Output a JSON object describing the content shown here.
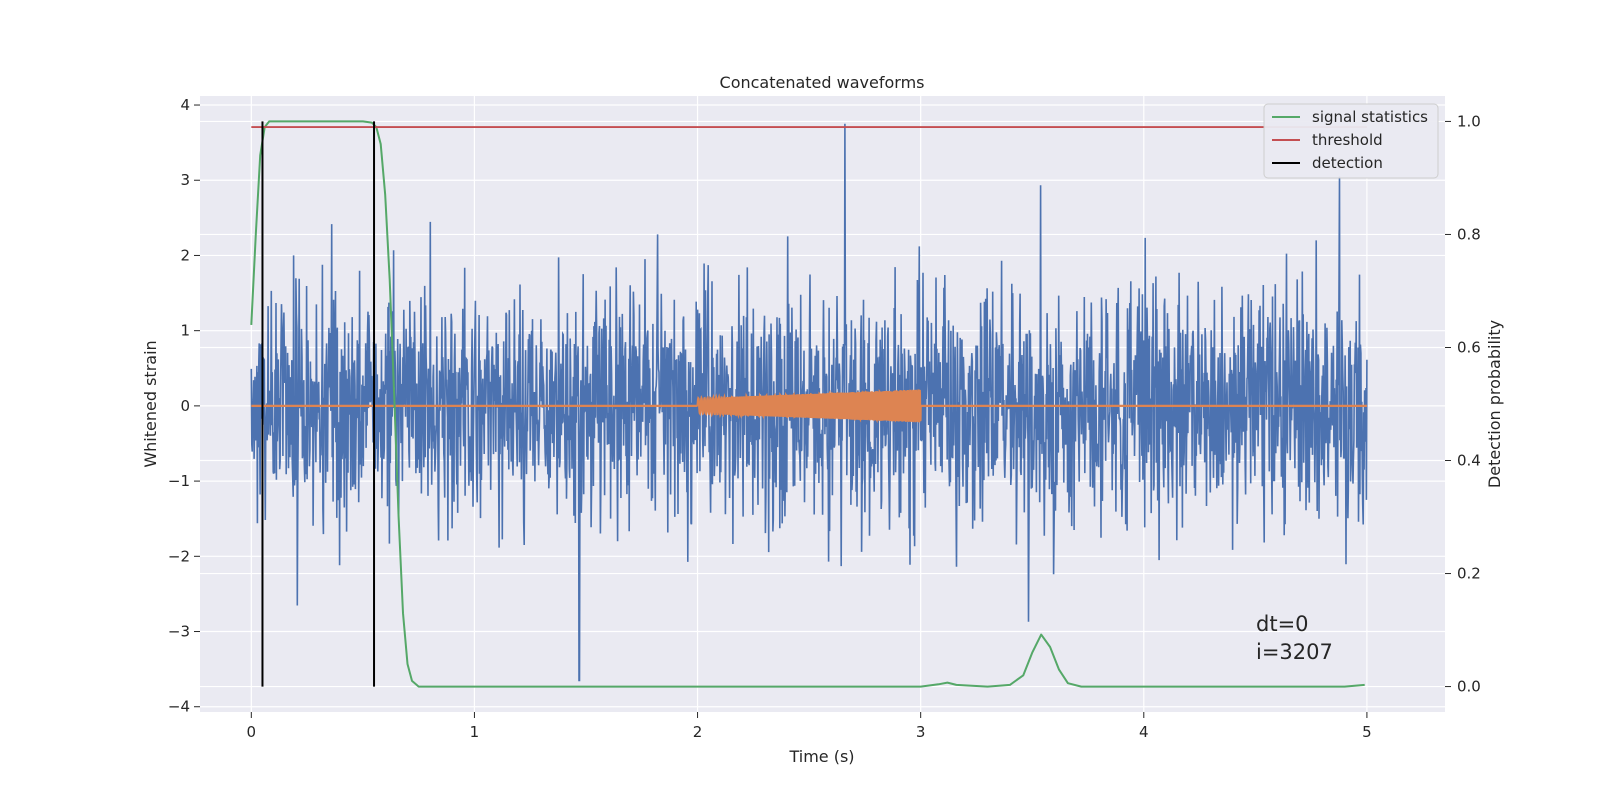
{
  "chart_data": {
    "type": "line",
    "title": "Concatenated waveforms",
    "xlabel": "Time (s)",
    "ylabel_left": "Whitened strain",
    "ylabel_right": "Detection probability",
    "xlim": [
      -0.23,
      5.35
    ],
    "ylim_left": [
      -4.07,
      4.12
    ],
    "ylim_right": [
      -0.045,
      1.045
    ],
    "x_ticks": [
      0,
      1,
      2,
      3,
      4,
      5
    ],
    "y_ticks_left": [
      -4,
      -3,
      -2,
      -1,
      0,
      1,
      2,
      3,
      4
    ],
    "y_ticks_right": [
      0.0,
      0.2,
      0.4,
      0.6,
      0.8,
      1.0
    ],
    "grid": true,
    "legend_position": "top-right",
    "legend": [
      {
        "label": "signal statistics",
        "color": "#55a868"
      },
      {
        "label": "threshold",
        "color": "#c44e52"
      },
      {
        "label": "detection",
        "color": "#000000"
      }
    ],
    "series": [
      {
        "name": "whitened strain",
        "axis": "left",
        "color": "#4c72b0",
        "x_range": [
          0,
          5
        ],
        "typical_amplitude": 0.8,
        "peak_max": 3.75,
        "peak_min": -3.65,
        "peak_max_at": 2.66,
        "peak_min_at": 1.47
      },
      {
        "name": "injected signal",
        "axis": "left",
        "color": "#dd8452",
        "x_range": [
          0,
          5
        ],
        "chirp_start": 2.0,
        "chirp_end": 3.0,
        "amplitude_start": 0.1,
        "amplitude_end": 0.22
      },
      {
        "name": "signal statistics",
        "axis": "right",
        "color": "#55a868",
        "x": [
          0.0,
          0.02,
          0.04,
          0.06,
          0.08,
          0.1,
          0.2,
          0.3,
          0.4,
          0.5,
          0.54,
          0.56,
          0.58,
          0.6,
          0.62,
          0.64,
          0.66,
          0.68,
          0.7,
          0.72,
          0.75,
          1.0,
          2.0,
          2.9,
          3.0,
          3.08,
          3.12,
          3.16,
          3.3,
          3.4,
          3.46,
          3.5,
          3.54,
          3.58,
          3.62,
          3.66,
          3.72,
          4.0,
          4.5,
          4.9,
          4.99
        ],
        "y": [
          0.64,
          0.8,
          0.94,
          0.99,
          1.0,
          1.0,
          1.0,
          1.0,
          1.0,
          1.0,
          0.998,
          0.99,
          0.96,
          0.87,
          0.72,
          0.52,
          0.3,
          0.13,
          0.04,
          0.01,
          0.0,
          0.0,
          0.0,
          0.0,
          0.0,
          0.004,
          0.007,
          0.003,
          0.0,
          0.003,
          0.02,
          0.06,
          0.092,
          0.07,
          0.03,
          0.006,
          0.0,
          0.0,
          0.0,
          0.0,
          0.003
        ]
      },
      {
        "name": "threshold",
        "axis": "right",
        "color": "#c44e52",
        "x": [
          0,
          5
        ],
        "y": [
          0.99,
          0.99
        ]
      }
    ],
    "detections": {
      "color": "#000000",
      "x": [
        0.05,
        0.55
      ],
      "y_range": [
        0.0,
        1.0
      ]
    },
    "annotation": {
      "x": 4.5,
      "lines": [
        "dt=0",
        "i=3207"
      ]
    }
  }
}
